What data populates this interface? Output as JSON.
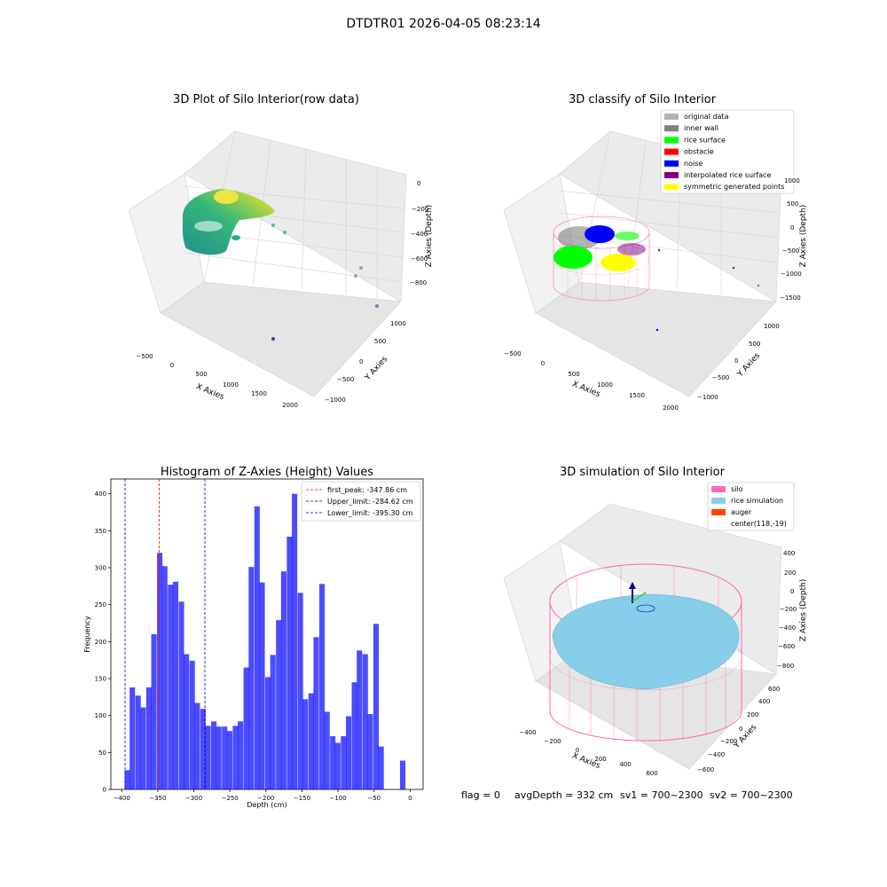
{
  "suptitle": "DTDTR01 2026-04-05 08:23:14",
  "footer": {
    "flag": "flag = 0",
    "avg": "avgDepth = 332 cm",
    "sv1": "sv1 = 700~2300",
    "sv2": "sv2 = 700~2300"
  },
  "chart_data": [
    {
      "type": "scatter",
      "projection": "3d",
      "title": "3D Plot of Silo Interior(row data)",
      "xlabel": "X Axies",
      "ylabel": "Y Axies",
      "zlabel": "Z Axies (Depth)",
      "x_ticks": [
        "−500",
        "0",
        "500",
        "1000",
        "1500",
        "2000"
      ],
      "y_ticks": [
        "−1000",
        "−500",
        "0",
        "500",
        "1000"
      ],
      "z_ticks": [
        "−800",
        "−600",
        "−400",
        "−200",
        "0"
      ],
      "colormap": "viridis",
      "outlier_points": [
        {
          "x": 700,
          "y": 250,
          "z": -320
        },
        {
          "x": 850,
          "y": 250,
          "z": -380
        },
        {
          "x": 1500,
          "y": -100,
          "z": -650
        },
        {
          "x": 1480,
          "y": -150,
          "z": -700
        },
        {
          "x": 1900,
          "y": -700,
          "z": -900
        },
        {
          "x": 1450,
          "y": -1000,
          "z": -1000
        }
      ]
    },
    {
      "type": "scatter",
      "projection": "3d",
      "title": "3D classify of Silo Interior",
      "xlabel": "X Axies",
      "ylabel": "Y Axies",
      "zlabel": "Z Axies (Depth)",
      "x_ticks": [
        "−500",
        "0",
        "500",
        "1000",
        "1500",
        "2000"
      ],
      "y_ticks": [
        "−1000",
        "−500",
        "0",
        "500",
        "1000"
      ],
      "z_ticks": [
        "−1500",
        "−1000",
        "−500",
        "0",
        "500",
        "1000"
      ],
      "legend_position": "top-right",
      "legend": [
        {
          "label": "original data",
          "color": "#b3b3b3"
        },
        {
          "label": "inner wall",
          "color": "#808080"
        },
        {
          "label": "rice surface",
          "color": "#00ff00"
        },
        {
          "label": "obstacle",
          "color": "#ff0000"
        },
        {
          "label": "noise",
          "color": "#0000ff"
        },
        {
          "label": "interpolated rice surface",
          "color": "#800080"
        },
        {
          "label": "symmetric generated points",
          "color": "#ffff00"
        }
      ]
    },
    {
      "type": "bar",
      "title": "Histogram of Z-Axies (Height) Values",
      "xlabel": "Depth (cm)",
      "ylabel": "Frequency",
      "bar_color": "#0000ff",
      "bar_width": 7.5,
      "xlim": [
        -415,
        18
      ],
      "ylim": [
        0,
        420
      ],
      "x_ticks": [
        "−400",
        "−350",
        "−300",
        "−250",
        "−200",
        "−150",
        "−100",
        "−50",
        "0"
      ],
      "y_ticks": [
        "0",
        "50",
        "100",
        "150",
        "200",
        "250",
        "300",
        "350",
        "400"
      ],
      "bins_start": [
        -396,
        -389,
        -381,
        -374,
        -366,
        -359,
        -351,
        -344,
        -336,
        -329,
        -321,
        -314,
        -306,
        -299,
        -291,
        -284,
        -276,
        -269,
        -261,
        -254,
        -246,
        -239,
        -231,
        -224,
        -216,
        -209,
        -201,
        -194,
        -186,
        -179,
        -171,
        -164,
        -156,
        -149,
        -141,
        -134,
        -126,
        -119,
        -111,
        -104,
        -96,
        -89,
        -81,
        -74,
        -66,
        -59,
        -51,
        -44,
        -36,
        -29,
        -21,
        -14,
        -6
      ],
      "values": [
        26,
        138,
        127,
        111,
        138,
        210,
        320,
        302,
        277,
        281,
        254,
        183,
        174,
        117,
        109,
        86,
        92,
        85,
        85,
        79,
        86,
        92,
        165,
        301,
        383,
        280,
        152,
        182,
        229,
        295,
        342,
        400,
        266,
        122,
        130,
        206,
        278,
        105,
        72,
        63,
        72,
        99,
        145,
        188,
        183,
        102,
        224,
        58,
        0,
        0,
        0,
        39,
        0
      ],
      "vlines": [
        {
          "label": "first_peak: -347.86 cm",
          "x": -347.86,
          "color": "#ff0000"
        },
        {
          "label": "Upper_limit: -284.62 cm",
          "x": -284.62,
          "color": "#00008b"
        },
        {
          "label": "Lower_limit: -395.30 cm",
          "x": -395.3,
          "color": "#00008b"
        }
      ],
      "legend_position": "top-right"
    },
    {
      "type": "surface",
      "projection": "3d",
      "title": "3D simulation of Silo Interior",
      "xlabel": "X Axies",
      "ylabel": "Y Axies",
      "zlabel": "Z Axies (Depth)",
      "x_ticks": [
        "−400",
        "−200",
        "0",
        "200",
        "400",
        "600"
      ],
      "y_ticks": [
        "−600",
        "−400",
        "−200",
        "0",
        "200",
        "400",
        "600"
      ],
      "z_ticks": [
        "−800",
        "−600",
        "−400",
        "−200",
        "0",
        "200",
        "400"
      ],
      "legend_position": "top-right",
      "legend": [
        {
          "label": "silo",
          "color": "#ff69b4"
        },
        {
          "label": "rice simulation",
          "color": "#87ceeb"
        },
        {
          "label": "auger",
          "color": "#ff4500"
        },
        {
          "label": "center(118,-19)",
          "color": ""
        }
      ]
    }
  ]
}
